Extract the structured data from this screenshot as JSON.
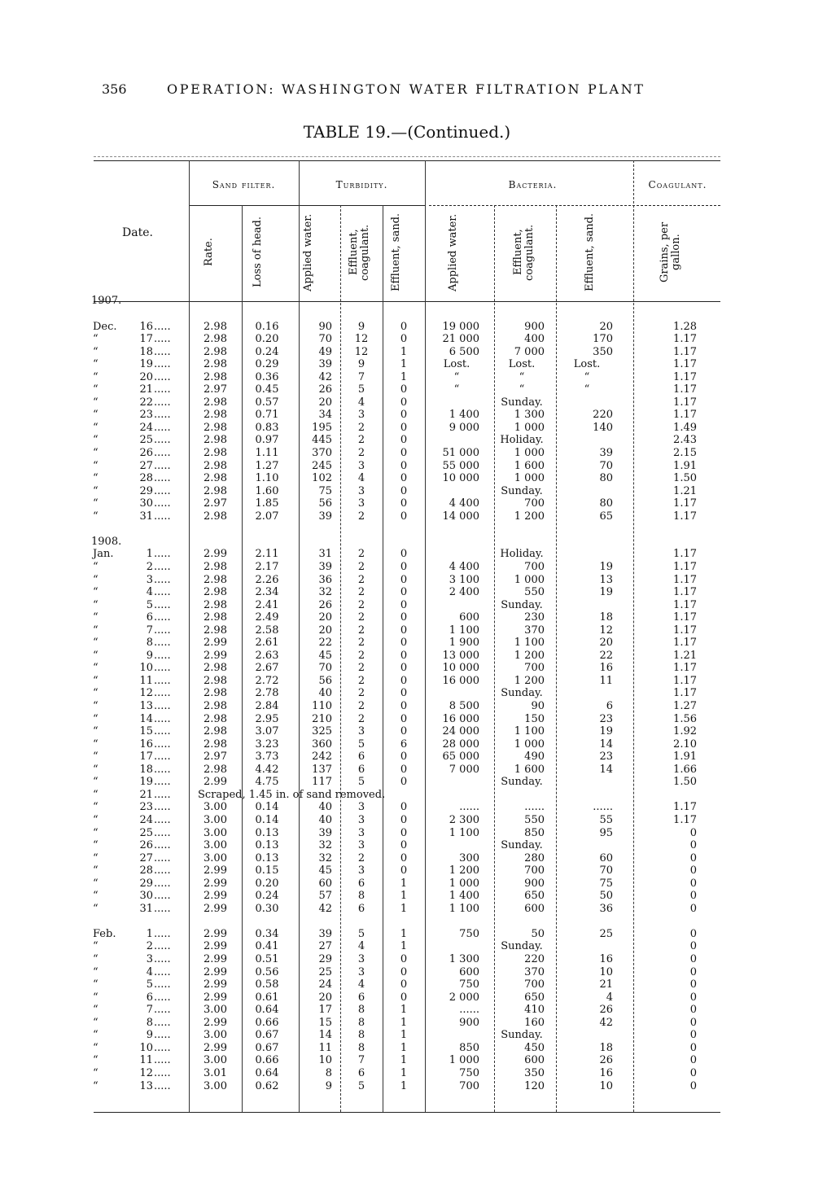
{
  "page_number": "356",
  "running_head": "OPERATION: WASHINGTON WATER FILTRATION PLANT",
  "table_title": "TABLE 19.—(Continued.)",
  "groups": {
    "sand_filter": "Sand filter.",
    "turbidity": "Turbidity.",
    "bacteria": "Bacteria.",
    "coagulant": "Coagulant."
  },
  "columns": {
    "date": "Date.",
    "rate": "Rate.",
    "loss": "Loss of head.",
    "turb_applied": "Applied water.",
    "turb_eff_coag": "Effluent, coagulant.",
    "turb_eff_sand": "Effluent, sand.",
    "bact_applied": "Applied water.",
    "bact_eff_coag": "Effluent, coagulant.",
    "bact_eff_sand": "Effluent, sand.",
    "coag_grains": "Grains, per gallon."
  },
  "ditto": "“",
  "sections": [
    {
      "year": "1907.",
      "month": "Dec.",
      "rows": [
        [
          "16",
          "2.98",
          "0.16",
          "90",
          "9",
          "0",
          "19 000",
          "900",
          "20",
          "1.28"
        ],
        [
          "17",
          "2.98",
          "0.20",
          "70",
          "12",
          "0",
          "21 000",
          "400",
          "170",
          "1.17"
        ],
        [
          "18",
          "2.98",
          "0.24",
          "49",
          "12",
          "1",
          "6 500",
          "7 000",
          "350",
          "1.17"
        ],
        [
          "19",
          "2.98",
          "0.29",
          "39",
          "9",
          "1",
          "Lost.",
          "Lost.",
          "Lost.",
          "1.17"
        ],
        [
          "20",
          "2.98",
          "0.36",
          "42",
          "7",
          "1",
          "“",
          "“",
          "“",
          "1.17"
        ],
        [
          "21",
          "2.97",
          "0.45",
          "26",
          "5",
          "0",
          "“",
          "“",
          "“",
          "1.17"
        ],
        [
          "22",
          "2.98",
          "0.57",
          "20",
          "4",
          "0",
          "",
          "Sunday.",
          "",
          "1.17"
        ],
        [
          "23",
          "2.98",
          "0.71",
          "34",
          "3",
          "0",
          "1 400",
          "1 300",
          "220",
          "1.17"
        ],
        [
          "24",
          "2.98",
          "0.83",
          "195",
          "2",
          "0",
          "9 000",
          "1 000",
          "140",
          "1.49"
        ],
        [
          "25",
          "2.98",
          "0.97",
          "445",
          "2",
          "0",
          "",
          "Holiday.",
          "",
          "2.43"
        ],
        [
          "26",
          "2.98",
          "1.11",
          "370",
          "2",
          "0",
          "51 000",
          "1 000",
          "39",
          "2.15"
        ],
        [
          "27",
          "2.98",
          "1.27",
          "245",
          "3",
          "0",
          "55 000",
          "1 600",
          "70",
          "1.91"
        ],
        [
          "28",
          "2.98",
          "1.10",
          "102",
          "4",
          "0",
          "10 000",
          "1 000",
          "80",
          "1.50"
        ],
        [
          "29",
          "2.98",
          "1.60",
          "75",
          "3",
          "0",
          "",
          "Sunday.",
          "",
          "1.21"
        ],
        [
          "30",
          "2.97",
          "1.85",
          "56",
          "3",
          "0",
          "4 400",
          "700",
          "80",
          "1.17"
        ],
        [
          "31",
          "2.98",
          "2.07",
          "39",
          "2",
          "0",
          "14 000",
          "1 200",
          "65",
          "1.17"
        ]
      ]
    },
    {
      "year": "1908.",
      "month": "Jan.",
      "rows": [
        [
          "1",
          "2.99",
          "2.11",
          "31",
          "2",
          "0",
          "",
          "Holiday.",
          "",
          "1.17"
        ],
        [
          "2",
          "2.98",
          "2.17",
          "39",
          "2",
          "0",
          "4 400",
          "700",
          "19",
          "1.17"
        ],
        [
          "3",
          "2.98",
          "2.26",
          "36",
          "2",
          "0",
          "3 100",
          "1 000",
          "13",
          "1.17"
        ],
        [
          "4",
          "2.98",
          "2.34",
          "32",
          "2",
          "0",
          "2 400",
          "550",
          "19",
          "1.17"
        ],
        [
          "5",
          "2.98",
          "2.41",
          "26",
          "2",
          "0",
          "",
          "Sunday.",
          "",
          "1.17"
        ],
        [
          "6",
          "2.98",
          "2.49",
          "20",
          "2",
          "0",
          "600",
          "230",
          "18",
          "1.17"
        ],
        [
          "7",
          "2.98",
          "2.58",
          "20",
          "2",
          "0",
          "1 100",
          "370",
          "12",
          "1.17"
        ],
        [
          "8",
          "2.99",
          "2.61",
          "22",
          "2",
          "0",
          "1 900",
          "1 100",
          "20",
          "1.17"
        ],
        [
          "9",
          "2.99",
          "2.63",
          "45",
          "2",
          "0",
          "13 000",
          "1 200",
          "22",
          "1.21"
        ],
        [
          "10",
          "2.98",
          "2.67",
          "70",
          "2",
          "0",
          "10 000",
          "700",
          "16",
          "1.17"
        ],
        [
          "11",
          "2.98",
          "2.72",
          "56",
          "2",
          "0",
          "16 000",
          "1 200",
          "11",
          "1.17"
        ],
        [
          "12",
          "2.98",
          "2.78",
          "40",
          "2",
          "0",
          "",
          "Sunday.",
          "",
          "1.17"
        ],
        [
          "13",
          "2.98",
          "2.84",
          "110",
          "2",
          "0",
          "8 500",
          "90",
          "6",
          "1.27"
        ],
        [
          "14",
          "2.98",
          "2.95",
          "210",
          "2",
          "0",
          "16 000",
          "150",
          "23",
          "1.56"
        ],
        [
          "15",
          "2.98",
          "3.07",
          "325",
          "3",
          "0",
          "24 000",
          "1 100",
          "19",
          "1.92"
        ],
        [
          "16",
          "2.98",
          "3.23",
          "360",
          "5",
          "6",
          "28 000",
          "1 000",
          "14",
          "2.10"
        ],
        [
          "17",
          "2.97",
          "3.73",
          "242",
          "6",
          "0",
          "65 000",
          "490",
          "23",
          "1.91"
        ],
        [
          "18",
          "2.98",
          "4.42",
          "137",
          "6",
          "0",
          "7 000",
          "1 600",
          "14",
          "1.66"
        ],
        [
          "19",
          "2.99",
          "4.75",
          "117",
          "5",
          "0",
          "",
          "Sunday.",
          "",
          "1.50"
        ],
        [
          "21",
          "Scraped, 1.45 in. of sand removed."
        ],
        [
          "23",
          "3.00",
          "0.14",
          "40",
          "3",
          "0",
          "......",
          "......",
          "......",
          "1.17"
        ],
        [
          "24",
          "3.00",
          "0.14",
          "40",
          "3",
          "0",
          "2 300",
          "550",
          "55",
          "1.17"
        ],
        [
          "25",
          "3.00",
          "0.13",
          "39",
          "3",
          "0",
          "1 100",
          "850",
          "95",
          "0"
        ],
        [
          "26",
          "3.00",
          "0.13",
          "32",
          "3",
          "0",
          "",
          "Sunday.",
          "",
          "0"
        ],
        [
          "27",
          "3.00",
          "0.13",
          "32",
          "2",
          "0",
          "300",
          "280",
          "60",
          "0"
        ],
        [
          "28",
          "2.99",
          "0.15",
          "45",
          "3",
          "0",
          "1 200",
          "700",
          "70",
          "0"
        ],
        [
          "29",
          "2.99",
          "0.20",
          "60",
          "6",
          "1",
          "1 000",
          "900",
          "75",
          "0"
        ],
        [
          "30",
          "2.99",
          "0.24",
          "57",
          "8",
          "1",
          "1 400",
          "650",
          "50",
          "0"
        ],
        [
          "31",
          "2.99",
          "0.30",
          "42",
          "6",
          "1",
          "1 100",
          "600",
          "36",
          "0"
        ]
      ]
    },
    {
      "year": "",
      "month": "Feb.",
      "rows": [
        [
          "1",
          "2.99",
          "0.34",
          "39",
          "5",
          "1",
          "750",
          "50",
          "25",
          "0"
        ],
        [
          "2",
          "2.99",
          "0.41",
          "27",
          "4",
          "1",
          "",
          "Sunday.",
          "",
          "0"
        ],
        [
          "3",
          "2.99",
          "0.51",
          "29",
          "3",
          "0",
          "1 300",
          "220",
          "16",
          "0"
        ],
        [
          "4",
          "2.99",
          "0.56",
          "25",
          "3",
          "0",
          "600",
          "370",
          "10",
          "0"
        ],
        [
          "5",
          "2.99",
          "0.58",
          "24",
          "4",
          "0",
          "750",
          "700",
          "21",
          "0"
        ],
        [
          "6",
          "2.99",
          "0.61",
          "20",
          "6",
          "0",
          "2 000",
          "650",
          "4",
          "0"
        ],
        [
          "7",
          "3.00",
          "0.64",
          "17",
          "8",
          "1",
          "......",
          "410",
          "26",
          "0"
        ],
        [
          "8",
          "2.99",
          "0.66",
          "15",
          "8",
          "1",
          "900",
          "160",
          "42",
          "0"
        ],
        [
          "9",
          "3.00",
          "0.67",
          "14",
          "8",
          "1",
          "",
          "Sunday.",
          "",
          "0"
        ],
        [
          "10",
          "2.99",
          "0.67",
          "11",
          "8",
          "1",
          "850",
          "450",
          "18",
          "0"
        ],
        [
          "11",
          "3.00",
          "0.66",
          "10",
          "7",
          "1",
          "1 000",
          "600",
          "26",
          "0"
        ],
        [
          "12",
          "3.01",
          "0.64",
          "8",
          "6",
          "1",
          "750",
          "350",
          "16",
          "0"
        ],
        [
          "13",
          "3.00",
          "0.62",
          "9",
          "5",
          "1",
          "700",
          "120",
          "10",
          "0"
        ]
      ]
    }
  ]
}
